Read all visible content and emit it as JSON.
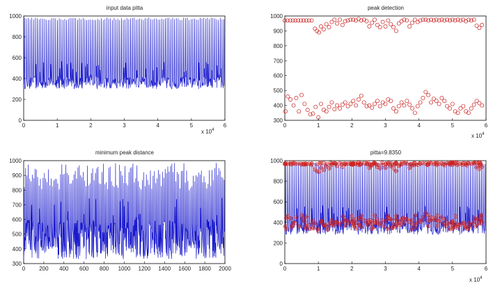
{
  "chart_data": [
    {
      "type": "line",
      "title": "input data pitta",
      "xlim": [
        0,
        60000
      ],
      "ylim": [
        0,
        1000
      ],
      "x_ticks": [
        "0",
        "1",
        "2",
        "3",
        "4",
        "5",
        "6"
      ],
      "x_multiplier": "x 10",
      "x_multiplier_exp": "4",
      "y_ticks": [
        "0",
        "200",
        "400",
        "600",
        "800",
        "1000"
      ],
      "series": [
        {
          "color": "#1a1acc",
          "pattern": {
            "n": 110,
            "low_range": [
              300,
              420
            ],
            "high_range": [
              960,
              985
            ],
            "period": 545
          }
        }
      ],
      "grid": false
    },
    {
      "type": "scatter",
      "title": "peak detection",
      "xlim": [
        0,
        60000
      ],
      "ylim": [
        300,
        1000
      ],
      "x_ticks": [
        "0",
        "1",
        "2",
        "3",
        "4",
        "5",
        "6"
      ],
      "x_multiplier": "x 10",
      "x_multiplier_exp": "4",
      "y_ticks": [
        "300",
        "400",
        "500",
        "600",
        "700",
        "800",
        "900",
        "1000"
      ],
      "marker": "circle",
      "color": "#cc2222",
      "series": [
        {
          "name_visible": false,
          "points_upper": [
            [
              0,
              970
            ],
            [
              800,
              970
            ],
            [
              1600,
              970
            ],
            [
              2400,
              970
            ],
            [
              3200,
              970
            ],
            [
              4000,
              970
            ],
            [
              4800,
              970
            ],
            [
              5600,
              970
            ],
            [
              6400,
              970
            ],
            [
              7200,
              970
            ],
            [
              8000,
              970
            ],
            [
              9000,
              915
            ],
            [
              9600,
              900
            ],
            [
              10200,
              890
            ],
            [
              10800,
              930
            ],
            [
              11600,
              910
            ],
            [
              12400,
              945
            ],
            [
              13200,
              925
            ],
            [
              14000,
              960
            ],
            [
              14800,
              975
            ],
            [
              15600,
              950
            ],
            [
              16400,
              975
            ],
            [
              17200,
              940
            ],
            [
              18000,
              965
            ],
            [
              18800,
              970
            ],
            [
              19600,
              975
            ],
            [
              20400,
              975
            ],
            [
              21200,
              970
            ],
            [
              22000,
              980
            ],
            [
              22800,
              970
            ],
            [
              23600,
              975
            ],
            [
              24400,
              965
            ],
            [
              25200,
              930
            ],
            [
              26000,
              955
            ],
            [
              26800,
              975
            ],
            [
              27600,
              940
            ],
            [
              28400,
              925
            ],
            [
              29200,
              960
            ],
            [
              30000,
              930
            ],
            [
              30800,
              970
            ],
            [
              31600,
              945
            ],
            [
              32400,
              925
            ],
            [
              33200,
              900
            ],
            [
              34000,
              950
            ],
            [
              34800,
              965
            ],
            [
              35600,
              975
            ],
            [
              36400,
              970
            ],
            [
              37200,
              930
            ],
            [
              38000,
              955
            ],
            [
              38800,
              975
            ],
            [
              39600,
              960
            ],
            [
              40400,
              970
            ],
            [
              41200,
              975
            ],
            [
              42000,
              975
            ],
            [
              42800,
              970
            ],
            [
              43600,
              975
            ],
            [
              44400,
              970
            ],
            [
              45200,
              975
            ],
            [
              46000,
              970
            ],
            [
              46800,
              975
            ],
            [
              47600,
              970
            ],
            [
              48400,
              975
            ],
            [
              49200,
              970
            ],
            [
              50000,
              975
            ],
            [
              50800,
              970
            ],
            [
              51600,
              975
            ],
            [
              52400,
              970
            ],
            [
              53200,
              975
            ],
            [
              54000,
              965
            ],
            [
              54800,
              975
            ],
            [
              55600,
              970
            ],
            [
              56400,
              975
            ],
            [
              57200,
              935
            ],
            [
              58000,
              920
            ],
            [
              58800,
              940
            ]
          ],
          "points_lower": [
            [
              200,
              360
            ],
            [
              900,
              460
            ],
            [
              1700,
              440
            ],
            [
              2600,
              400
            ],
            [
              3400,
              450
            ],
            [
              4200,
              360
            ],
            [
              5000,
              470
            ],
            [
              5900,
              410
            ],
            [
              6800,
              370
            ],
            [
              7600,
              340
            ],
            [
              8400,
              345
            ],
            [
              9200,
              390
            ],
            [
              10000,
              320
            ],
            [
              10800,
              410
            ],
            [
              11600,
              370
            ],
            [
              12400,
              360
            ],
            [
              13200,
              390
            ],
            [
              14000,
              420
            ],
            [
              14800,
              375
            ],
            [
              15600,
              400
            ],
            [
              16400,
              380
            ],
            [
              17200,
              405
            ],
            [
              18000,
              420
            ],
            [
              18800,
              395
            ],
            [
              19600,
              410
            ],
            [
              20400,
              430
            ],
            [
              21200,
              400
            ],
            [
              22000,
              440
            ],
            [
              22800,
              465
            ],
            [
              23600,
              420
            ],
            [
              24400,
              395
            ],
            [
              25200,
              400
            ],
            [
              26000,
              385
            ],
            [
              26800,
              410
            ],
            [
              27600,
              430
            ],
            [
              28400,
              395
            ],
            [
              29200,
              420
            ],
            [
              30000,
              410
            ],
            [
              30800,
              440
            ],
            [
              31600,
              430
            ],
            [
              32400,
              380
            ],
            [
              33200,
              360
            ],
            [
              34000,
              395
            ],
            [
              34800,
              420
            ],
            [
              35600,
              400
            ],
            [
              36400,
              430
            ],
            [
              37200,
              405
            ],
            [
              38000,
              380
            ],
            [
              38800,
              350
            ],
            [
              39600,
              395
            ],
            [
              40400,
              420
            ],
            [
              41200,
              450
            ],
            [
              42000,
              490
            ],
            [
              42800,
              470
            ],
            [
              43600,
              420
            ],
            [
              44400,
              445
            ],
            [
              45200,
              430
            ],
            [
              46000,
              410
            ],
            [
              46800,
              450
            ],
            [
              47600,
              430
            ],
            [
              48400,
              395
            ],
            [
              49200,
              380
            ],
            [
              50000,
              410
            ],
            [
              50800,
              360
            ],
            [
              51600,
              350
            ],
            [
              52400,
              380
            ],
            [
              53200,
              395
            ],
            [
              54000,
              360
            ],
            [
              54800,
              350
            ],
            [
              55600,
              380
            ],
            [
              56400,
              405
            ],
            [
              57200,
              430
            ],
            [
              58000,
              415
            ],
            [
              58800,
              400
            ]
          ]
        }
      ],
      "grid": false
    },
    {
      "type": "line",
      "title": "minimum peak distance",
      "xlim": [
        0,
        2000
      ],
      "ylim": [
        300,
        1000
      ],
      "x_ticks": [
        "0",
        "200",
        "400",
        "600",
        "800",
        "1000",
        "1200",
        "1400",
        "1600",
        "1800",
        "2000"
      ],
      "y_ticks": [
        "300",
        "400",
        "500",
        "600",
        "700",
        "800",
        "900",
        "1000"
      ],
      "series": [
        {
          "color": "#1a1acc",
          "pattern": {
            "n": 150,
            "low_range": [
              330,
              600
            ],
            "high_range": [
              800,
              985
            ],
            "period": 13.3
          }
        }
      ],
      "grid": false
    },
    {
      "type": "line",
      "title": "pitta=9.8350",
      "xlim": [
        0,
        60000
      ],
      "ylim": [
        0,
        1000
      ],
      "x_ticks": [
        "0",
        "1",
        "2",
        "3",
        "4",
        "5",
        "6"
      ],
      "x_multiplier": "x 10",
      "x_multiplier_exp": "4",
      "y_ticks": [
        "0",
        "200",
        "400",
        "600",
        "800",
        "1000"
      ],
      "series": [
        {
          "color": "#1a1acc",
          "pattern": {
            "n": 110,
            "low_range": [
              280,
              420
            ],
            "high_range": [
              960,
              985
            ],
            "period": 545
          }
        },
        {
          "color": "#cc2222",
          "marker": "circle-plus",
          "pattern": {
            "upper_y": 965,
            "lower_y": 360
          }
        }
      ],
      "grid": false
    }
  ],
  "colors": {
    "line": "#1a1acc",
    "marker": "#cc2222",
    "frame": "#000000"
  }
}
